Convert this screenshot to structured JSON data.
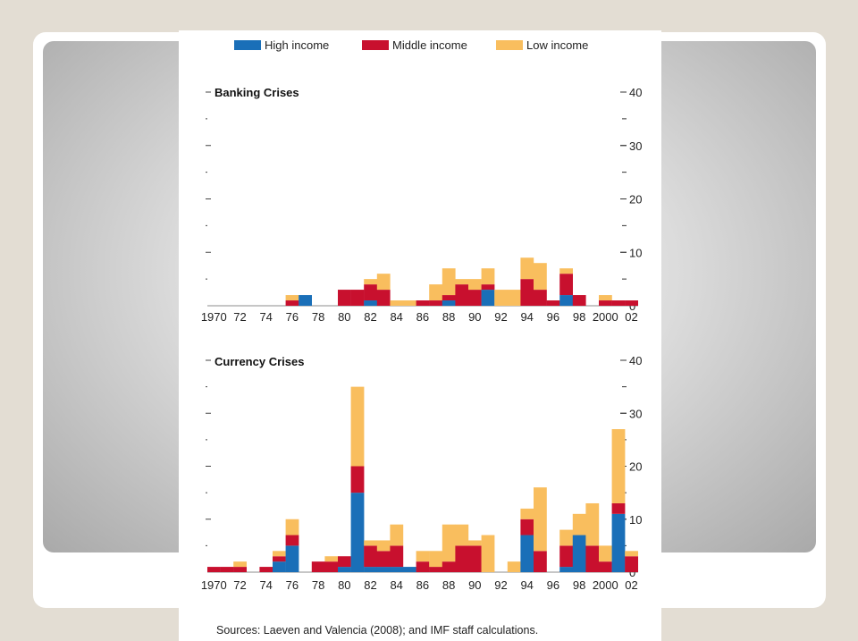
{
  "legend": {
    "items": [
      {
        "label": "High income",
        "color": "#1a6fb8"
      },
      {
        "label": "Middle income",
        "color": "#c8102e"
      },
      {
        "label": "Low income",
        "color": "#f9be5e"
      }
    ]
  },
  "source": "Sources: Laeven and Valencia (2008); and IMF staff calculations.",
  "x_tick_labels": [
    "1970",
    "72",
    "74",
    "76",
    "78",
    "80",
    "82",
    "84",
    "86",
    "88",
    "90",
    "92",
    "94",
    "96",
    "98",
    "2000",
    "02"
  ],
  "y_tick_labels": [
    "0",
    "10",
    "20",
    "30",
    "40"
  ],
  "chart_data": [
    {
      "type": "bar",
      "stacked": true,
      "title": "Banking Crises",
      "xlabel": "",
      "ylabel": "",
      "ylim": [
        0,
        40
      ],
      "categories": [
        "1970",
        "1971",
        "1972",
        "1973",
        "1974",
        "1975",
        "1976",
        "1977",
        "1978",
        "1979",
        "1980",
        "1981",
        "1982",
        "1983",
        "1984",
        "1985",
        "1986",
        "1987",
        "1988",
        "1989",
        "1990",
        "1991",
        "1992",
        "1993",
        "1994",
        "1995",
        "1996",
        "1997",
        "1998",
        "1999",
        "2000",
        "2001",
        "2002"
      ],
      "series": [
        {
          "name": "High income",
          "values": [
            0,
            0,
            0,
            0,
            0,
            0,
            0,
            2,
            0,
            0,
            0,
            0,
            1,
            0,
            0,
            0,
            0,
            0,
            1,
            0,
            0,
            3,
            0,
            0,
            0,
            0,
            0,
            2,
            0,
            0,
            0,
            0,
            0
          ]
        },
        {
          "name": "Middle income",
          "values": [
            0,
            0,
            0,
            0,
            0,
            0,
            1,
            0,
            0,
            0,
            3,
            3,
            3,
            3,
            0,
            0,
            1,
            1,
            1,
            4,
            3,
            1,
            0,
            0,
            5,
            3,
            1,
            4,
            2,
            0,
            1,
            1,
            1
          ]
        },
        {
          "name": "Low income",
          "values": [
            0,
            0,
            0,
            0,
            0,
            0,
            1,
            0,
            0,
            0,
            0,
            0,
            1,
            3,
            1,
            1,
            0,
            3,
            5,
            1,
            2,
            3,
            3,
            3,
            4,
            5,
            0,
            1,
            0,
            0,
            1,
            0,
            0
          ]
        }
      ]
    },
    {
      "type": "bar",
      "stacked": true,
      "title": "Currency Crises",
      "xlabel": "",
      "ylabel": "",
      "ylim": [
        0,
        40
      ],
      "categories": [
        "1970",
        "1971",
        "1972",
        "1973",
        "1974",
        "1975",
        "1976",
        "1977",
        "1978",
        "1979",
        "1980",
        "1981",
        "1982",
        "1983",
        "1984",
        "1985",
        "1986",
        "1987",
        "1988",
        "1989",
        "1990",
        "1991",
        "1992",
        "1993",
        "1994",
        "1995",
        "1996",
        "1997",
        "1998",
        "1999",
        "2000",
        "2001",
        "2002"
      ],
      "series": [
        {
          "name": "High income",
          "values": [
            0,
            0,
            0,
            0,
            0,
            2,
            5,
            0,
            0,
            0,
            1,
            15,
            1,
            1,
            1,
            1,
            0,
            0,
            0,
            0,
            0,
            0,
            0,
            0,
            7,
            0,
            0,
            1,
            7,
            0,
            0,
            11,
            0
          ]
        },
        {
          "name": "Middle income",
          "values": [
            1,
            1,
            1,
            0,
            1,
            1,
            2,
            0,
            2,
            2,
            2,
            5,
            4,
            3,
            4,
            0,
            2,
            1,
            2,
            5,
            5,
            0,
            0,
            0,
            3,
            4,
            0,
            4,
            0,
            5,
            2,
            2,
            3
          ]
        },
        {
          "name": "Low income",
          "values": [
            0,
            0,
            1,
            0,
            0,
            1,
            3,
            0,
            0,
            1,
            0,
            15,
            1,
            2,
            4,
            0,
            2,
            3,
            7,
            4,
            1,
            7,
            0,
            2,
            2,
            12,
            0,
            3,
            4,
            8,
            3,
            14,
            1
          ]
        }
      ]
    }
  ]
}
